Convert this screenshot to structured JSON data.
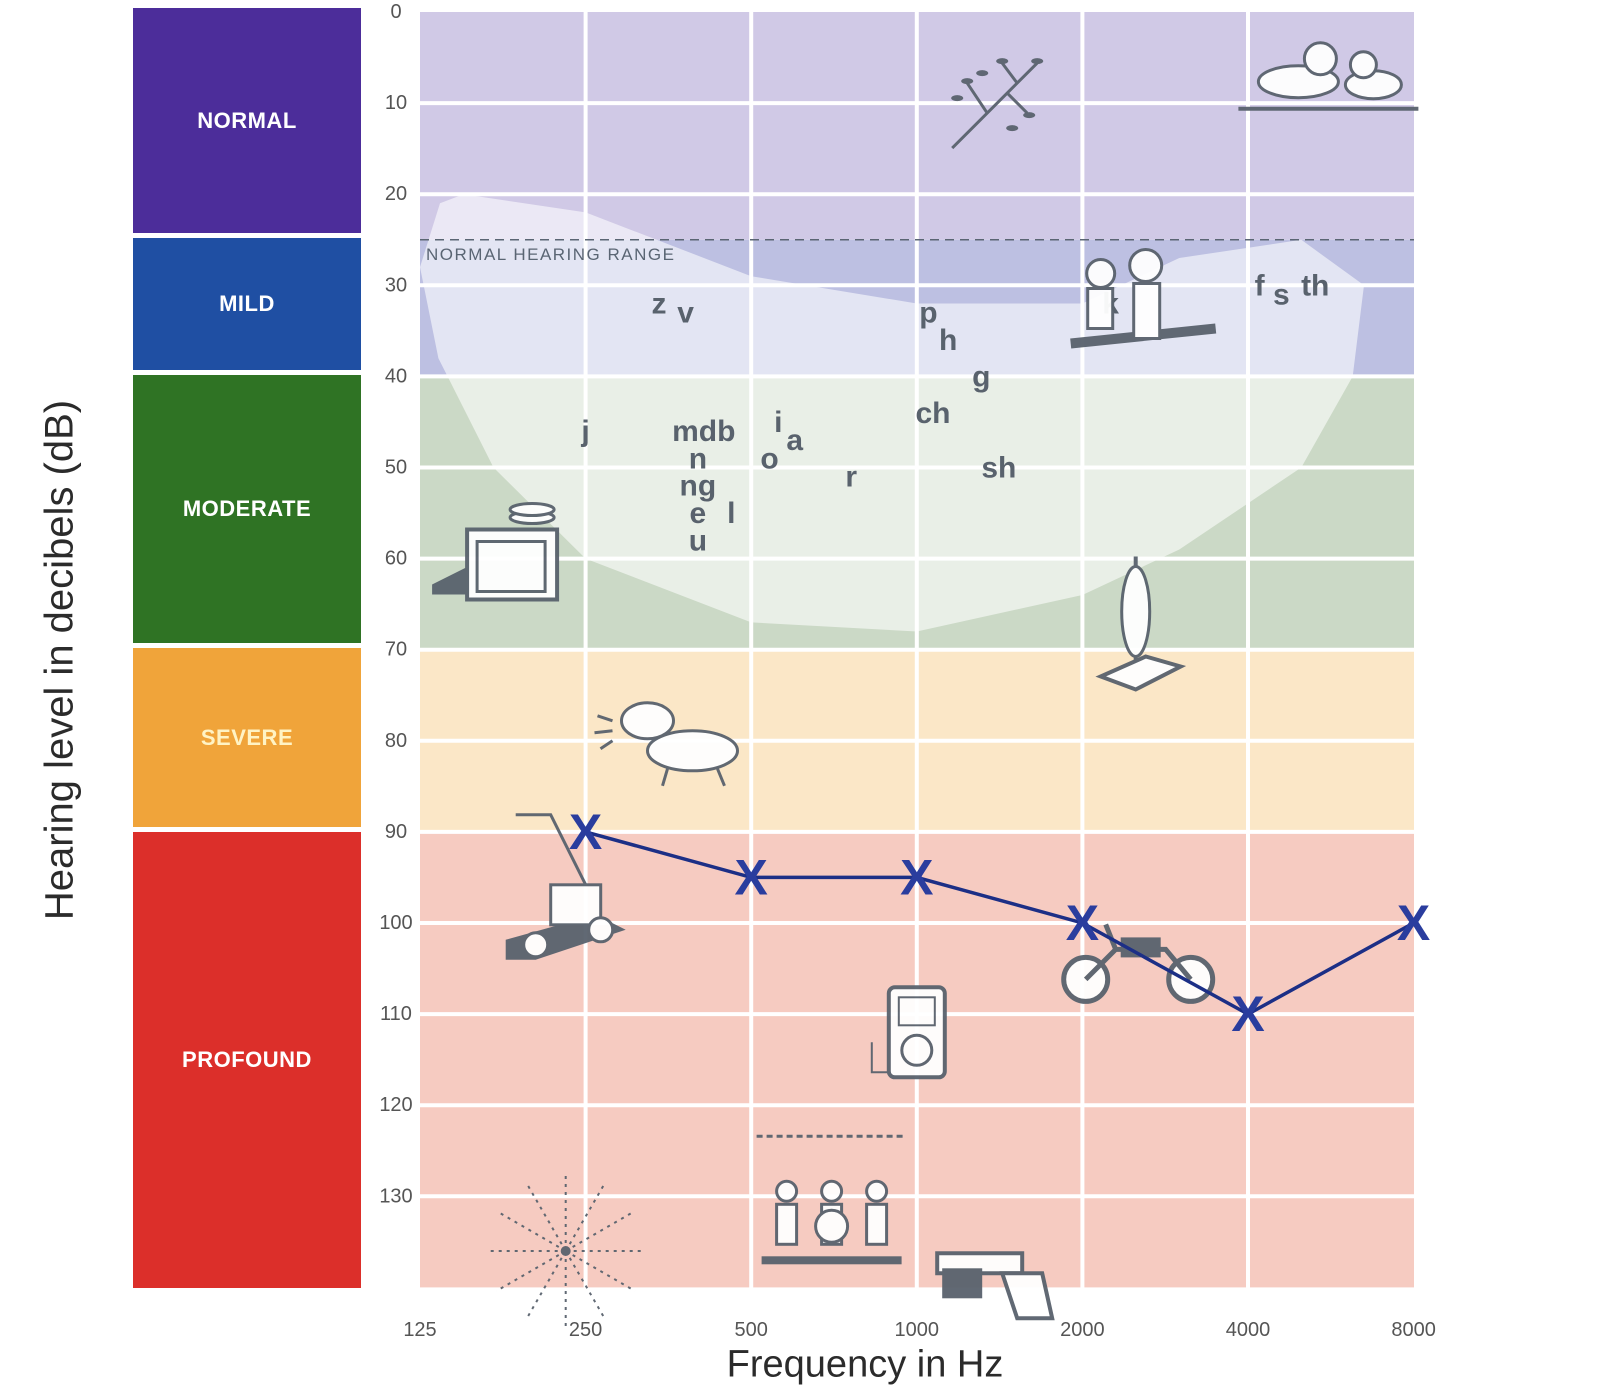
{
  "chart_data": {
    "type": "line",
    "xlabel": "Frequency in Hz",
    "ylabel": "Hearing level in decibels (dB)",
    "x_ticks": [
      "125",
      "250",
      "500",
      "1000",
      "2000",
      "4000",
      "8000"
    ],
    "y_ticks": [
      "0",
      "10",
      "20",
      "30",
      "40",
      "50",
      "60",
      "70",
      "80",
      "90",
      "100",
      "110",
      "120",
      "130"
    ],
    "ylim": [
      0,
      140
    ],
    "y_inverted": true,
    "x_scale": "log2",
    "grid": true,
    "reference_line": {
      "label": "NORMAL HEARING RANGE",
      "y": 25,
      "style": "dashed"
    },
    "categories": [
      {
        "label": "NORMAL",
        "from": 0,
        "to": 25,
        "color": "#4c2d9a",
        "band_color": "#d0c9e6"
      },
      {
        "label": "MILD",
        "from": 25,
        "to": 40,
        "color": "#1f4fa3",
        "band_color": "#bdc0e2"
      },
      {
        "label": "MODERATE",
        "from": 40,
        "to": 70,
        "color": "#2f7324",
        "band_color": "#cbd9c6"
      },
      {
        "label": "SEVERE",
        "from": 70,
        "to": 90,
        "color": "#f0a43a",
        "band_color": "#fbe7c7",
        "text_color": "#fff3c4"
      },
      {
        "label": "PROFOUND",
        "from": 90,
        "to": 140,
        "color": "#dc2f2a",
        "band_color": "#f6cbc1"
      }
    ],
    "series": [
      {
        "marker": "X",
        "color": "#1c2f86",
        "points": [
          {
            "x": 250,
            "y": 90
          },
          {
            "x": 500,
            "y": 95
          },
          {
            "x": 1000,
            "y": 95
          },
          {
            "x": 2000,
            "y": 100
          },
          {
            "x": 4000,
            "y": 110
          },
          {
            "x": 8000,
            "y": 100
          }
        ]
      }
    ],
    "speech_sounds": [
      {
        "text": "z",
        "x": 340,
        "y": 32
      },
      {
        "text": "v",
        "x": 380,
        "y": 33
      },
      {
        "text": "p",
        "x": 1050,
        "y": 33
      },
      {
        "text": "h",
        "x": 1140,
        "y": 36
      },
      {
        "text": "k",
        "x": 2250,
        "y": 32
      },
      {
        "text": "f",
        "x": 4200,
        "y": 30
      },
      {
        "text": "s",
        "x": 4600,
        "y": 31
      },
      {
        "text": "th",
        "x": 5300,
        "y": 30
      },
      {
        "text": "g",
        "x": 1310,
        "y": 40
      },
      {
        "text": "ch",
        "x": 1070,
        "y": 44
      },
      {
        "text": "j",
        "x": 250,
        "y": 46
      },
      {
        "text": "mdb",
        "x": 410,
        "y": 46
      },
      {
        "text": "n",
        "x": 400,
        "y": 49
      },
      {
        "text": "ng",
        "x": 400,
        "y": 52
      },
      {
        "text": "e",
        "x": 400,
        "y": 55
      },
      {
        "text": "l",
        "x": 460,
        "y": 55
      },
      {
        "text": "u",
        "x": 400,
        "y": 58
      },
      {
        "text": "i",
        "x": 560,
        "y": 45
      },
      {
        "text": "a",
        "x": 600,
        "y": 47
      },
      {
        "text": "o",
        "x": 540,
        "y": 49
      },
      {
        "text": "r",
        "x": 760,
        "y": 51
      },
      {
        "text": "sh",
        "x": 1410,
        "y": 50
      }
    ],
    "icons": [
      {
        "name": "leaves-icon",
        "x": 1400,
        "y": 10
      },
      {
        "name": "birds-icon",
        "x": 5600,
        "y": 6
      },
      {
        "name": "people-talking-icon",
        "x": 2500,
        "y": 32
      },
      {
        "name": "dishwasher-icon",
        "x": 180,
        "y": 59
      },
      {
        "name": "vacuum-cleaner-icon",
        "x": 2500,
        "y": 68
      },
      {
        "name": "dog-barking-icon",
        "x": 375,
        "y": 80
      },
      {
        "name": "lawn-mower-icon",
        "x": 230,
        "y": 98
      },
      {
        "name": "motorcycle-icon",
        "x": 2500,
        "y": 104
      },
      {
        "name": "music-player-icon",
        "x": 1000,
        "y": 112
      },
      {
        "name": "band-concert-icon",
        "x": 700,
        "y": 130
      },
      {
        "name": "fireworks-icon",
        "x": 230,
        "y": 136
      },
      {
        "name": "gun-icon",
        "x": 1400,
        "y": 139
      }
    ]
  }
}
